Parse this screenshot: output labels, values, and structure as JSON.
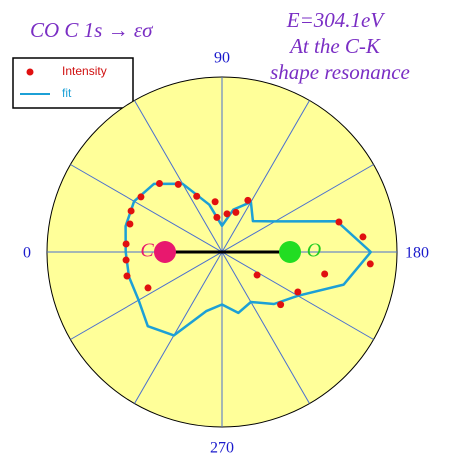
{
  "chart_data": {
    "type": "polar",
    "title": "CO  C 1s → εσ",
    "annotations": [
      "E=304.1eV",
      "At the C-K",
      "shape resonance"
    ],
    "atoms": [
      "C",
      "O"
    ],
    "rlim": [
      0,
      1
    ],
    "thetaticks": [
      0,
      90,
      180,
      270
    ],
    "background": "#ffff99",
    "series": [
      {
        "name": "Intensity",
        "color": "#e01010",
        "theta": [
          47.6,
          57.1,
          34.2,
          65.6,
          82.2,
          116.6,
          24.3,
          109.3,
          97.5,
          81.6,
          16.9,
          4.8,
          355.2,
          345.8,
          334.1,
          165.6,
          173.9,
          184.6,
          192.1,
          207.8,
          221.9,
          213.3
        ],
        "r": [
          0.53,
          0.46,
          0.56,
          0.35,
          0.29,
          0.33,
          0.57,
          0.24,
          0.22,
          0.2,
          0.55,
          0.55,
          0.55,
          0.56,
          0.47,
          0.69,
          0.81,
          0.85,
          0.6,
          0.49,
          0.45,
          0.24
        ]
      },
      {
        "name": "fit",
        "color": "#1ca0d6",
        "theta": [
          0,
          15,
          30,
          45,
          60,
          75,
          90,
          105,
          120,
          135,
          150,
          165,
          180,
          195,
          210,
          225,
          240,
          255,
          270,
          285,
          300,
          315,
          330,
          345,
          360
        ],
        "r": [
          0.55,
          0.57,
          0.58,
          0.55,
          0.45,
          0.28,
          0.15,
          0.25,
          0.33,
          0.25,
          0.35,
          0.68,
          0.85,
          0.72,
          0.5,
          0.42,
          0.33,
          0.36,
          0.3,
          0.35,
          0.55,
          0.6,
          0.55,
          0.55,
          0.55
        ]
      }
    ]
  }
}
